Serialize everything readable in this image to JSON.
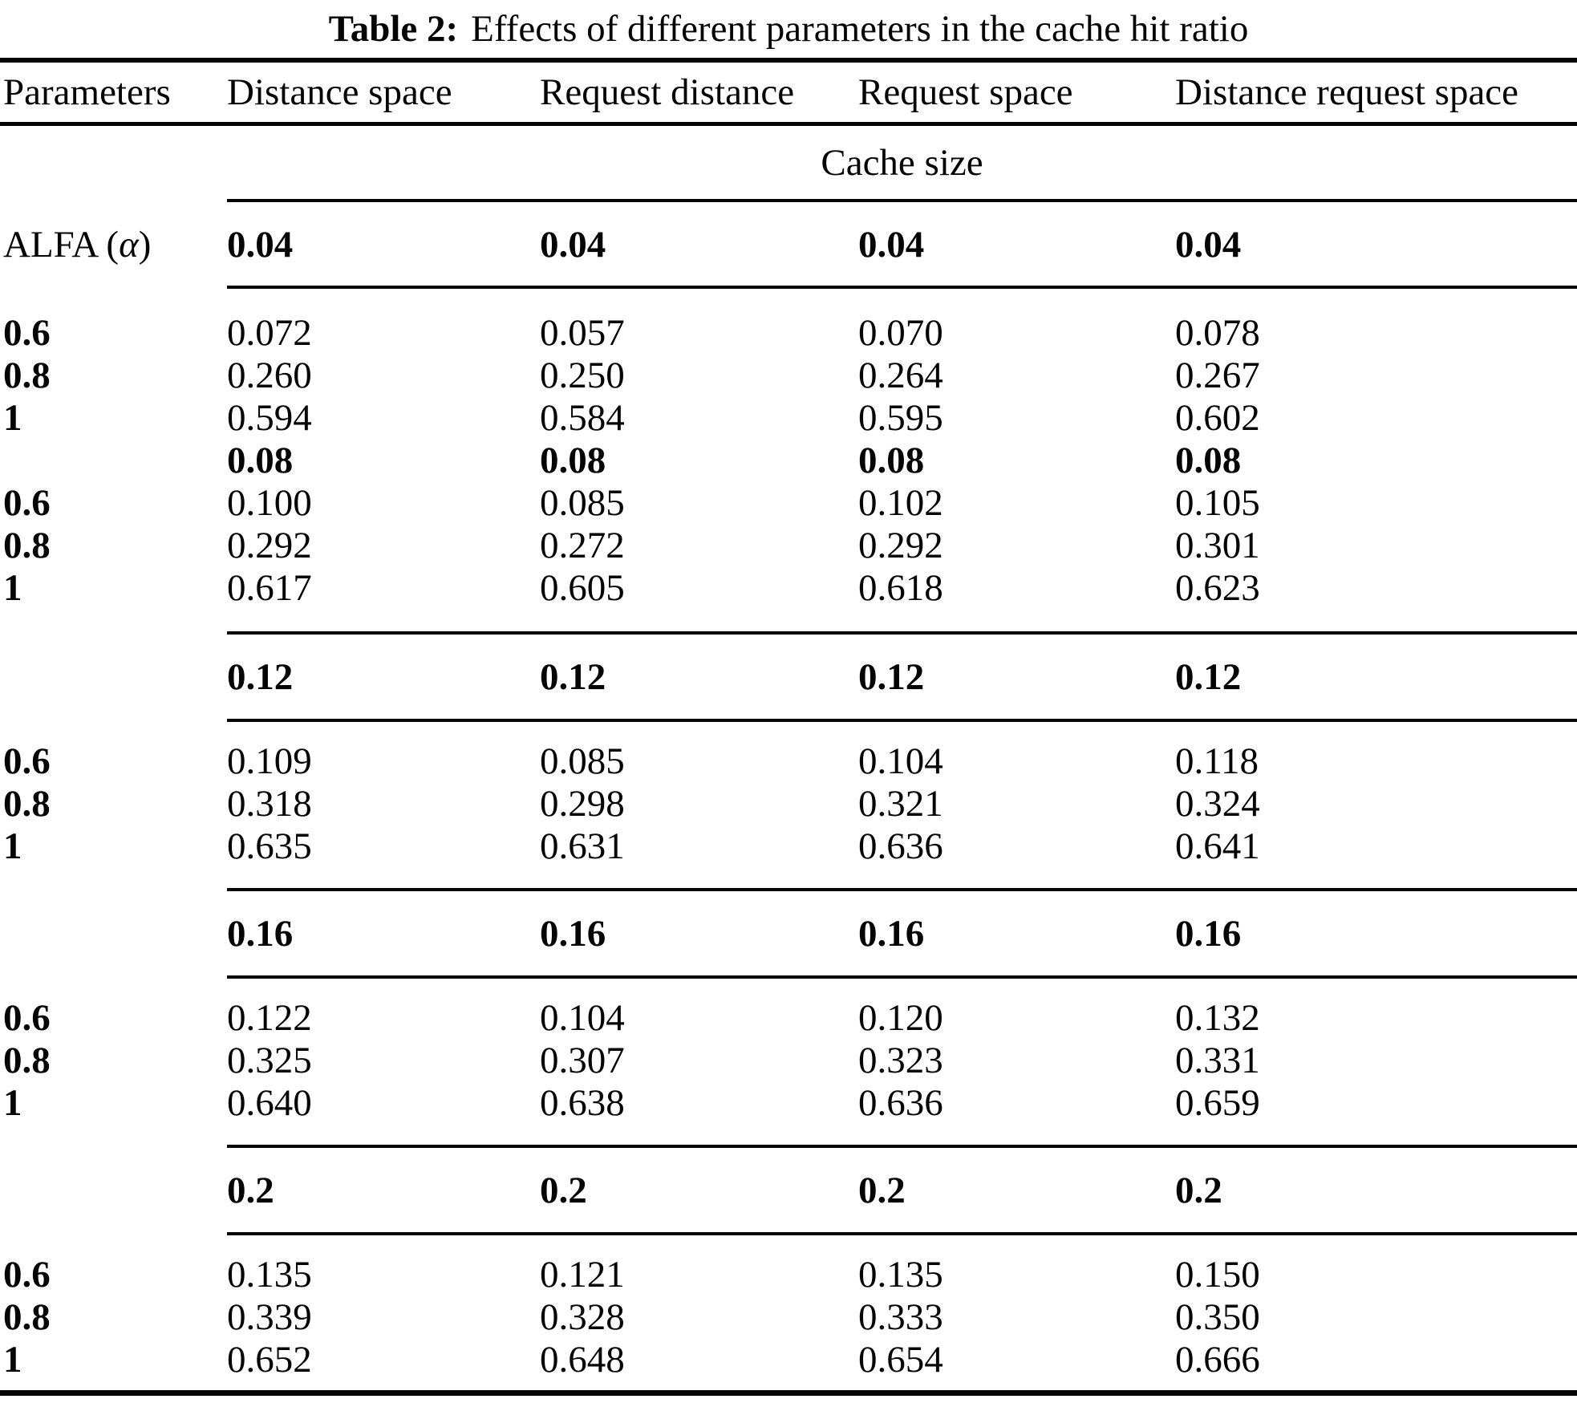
{
  "caption": {
    "label": "Table 2:",
    "text": "Effects of different parameters in the cache hit ratio"
  },
  "table": {
    "columns": [
      "Parameters",
      "Distance space",
      "Request distance",
      "Request space",
      "Distance request space"
    ],
    "group_header": "Cache size",
    "row_param": {
      "name": "ALFA",
      "symbol": "α"
    },
    "sections": [
      {
        "cache_size": "0.04",
        "rows": [
          {
            "alfa": "0.6",
            "values": [
              "0.072",
              "0.057",
              "0.070",
              "0.078"
            ]
          },
          {
            "alfa": "0.8",
            "values": [
              "0.260",
              "0.250",
              "0.264",
              "0.267"
            ]
          },
          {
            "alfa": "1",
            "values": [
              "0.594",
              "0.584",
              "0.595",
              "0.602"
            ]
          }
        ]
      },
      {
        "cache_size": "0.08",
        "rows": [
          {
            "alfa": "0.6",
            "values": [
              "0.100",
              "0.085",
              "0.102",
              "0.105"
            ]
          },
          {
            "alfa": "0.8",
            "values": [
              "0.292",
              "0.272",
              "0.292",
              "0.301"
            ]
          },
          {
            "alfa": "1",
            "values": [
              "0.617",
              "0.605",
              "0.618",
              "0.623"
            ]
          }
        ]
      },
      {
        "cache_size": "0.12",
        "rows": [
          {
            "alfa": "0.6",
            "values": [
              "0.109",
              "0.085",
              "0.104",
              "0.118"
            ]
          },
          {
            "alfa": "0.8",
            "values": [
              "0.318",
              "0.298",
              "0.321",
              "0.324"
            ]
          },
          {
            "alfa": "1",
            "values": [
              "0.635",
              "0.631",
              "0.636",
              "0.641"
            ]
          }
        ]
      },
      {
        "cache_size": "0.16",
        "rows": [
          {
            "alfa": "0.6",
            "values": [
              "0.122",
              "0.104",
              "0.120",
              "0.132"
            ]
          },
          {
            "alfa": "0.8",
            "values": [
              "0.325",
              "0.307",
              "0.323",
              "0.331"
            ]
          },
          {
            "alfa": "1",
            "values": [
              "0.640",
              "0.638",
              "0.636",
              "0.659"
            ]
          }
        ]
      },
      {
        "cache_size": "0.2",
        "rows": [
          {
            "alfa": "0.6",
            "values": [
              "0.135",
              "0.121",
              "0.135",
              "0.150"
            ]
          },
          {
            "alfa": "0.8",
            "values": [
              "0.339",
              "0.328",
              "0.333",
              "0.350"
            ]
          },
          {
            "alfa": "1",
            "values": [
              "0.652",
              "0.648",
              "0.654",
              "0.666"
            ]
          }
        ]
      }
    ]
  }
}
